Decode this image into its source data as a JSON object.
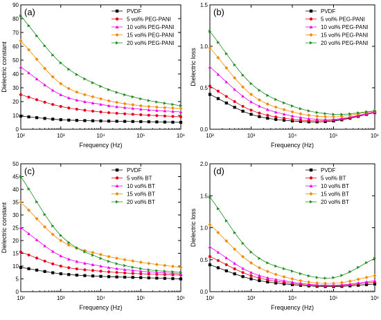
{
  "chart_data": [
    {
      "type": "line",
      "panel_label": "(a)",
      "xlabel": "Frequency (Hz)",
      "ylabel": "Dielectric constant",
      "xscale": "log",
      "xlim": [
        100,
        1000000
      ],
      "ylim": [
        0,
        90
      ],
      "yticks": [
        0,
        10,
        20,
        30,
        40,
        50,
        60,
        70,
        80,
        90
      ],
      "xtick_labels": [
        "10²",
        "10³",
        "10⁴",
        "10⁵",
        "10⁶"
      ],
      "ytick_labels": [
        "0",
        "10",
        "20",
        "30",
        "40",
        "50",
        "60",
        "70",
        "80",
        "90"
      ],
      "legend_position": "top-right",
      "x": [
        100,
        1000,
        10000,
        100000,
        1000000
      ],
      "series": [
        {
          "name": "PVDF",
          "color": "#000000",
          "marker": "square",
          "values": [
            9.5,
            6.9,
            6.0,
            5.5,
            5.0
          ]
        },
        {
          "name": "5 vol% PEG-PANI",
          "color": "#e8001c",
          "marker": "circle",
          "values": [
            25,
            16.5,
            12.5,
            10.5,
            9.0
          ]
        },
        {
          "name": "10 vol% PEG-PANI",
          "color": "#ee00ee",
          "marker": "triangle-up",
          "values": [
            45,
            25,
            18,
            14.5,
            12.5
          ]
        },
        {
          "name": "15 vol% PEG-PANI",
          "color": "#f08c00",
          "marker": "diamond",
          "values": [
            64,
            33,
            22,
            17,
            15
          ]
        },
        {
          "name": "20 vol% PEG-PANI",
          "color": "#1e8c1e",
          "marker": "triangle-right",
          "values": [
            82,
            48,
            31,
            22,
            17
          ]
        }
      ]
    },
    {
      "type": "line",
      "panel_label": "(b)",
      "xlabel": "Frequency (Hz)",
      "ylabel": "Dielectric loss",
      "xscale": "log",
      "xlim": [
        100,
        1000000
      ],
      "ylim": [
        0,
        1.5
      ],
      "yticks": [
        0,
        0.5,
        1.0,
        1.5
      ],
      "xtick_labels": [
        "10²",
        "10³",
        "10⁴",
        "10⁵",
        "10⁶"
      ],
      "ytick_labels": [
        "0.0",
        "0.5",
        "1.0",
        "1.5"
      ],
      "legend_position": "top-right",
      "x": [
        100,
        1000,
        10000,
        100000,
        1000000
      ],
      "series": [
        {
          "name": "PVDF",
          "color": "#000000",
          "marker": "square",
          "values": [
            0.42,
            0.18,
            0.1,
            0.1,
            0.2
          ]
        },
        {
          "name": "5 vol% PEG-PANI",
          "color": "#e8001c",
          "marker": "circle",
          "values": [
            0.52,
            0.23,
            0.12,
            0.11,
            0.2
          ]
        },
        {
          "name": "10 vol% PEG-PANI",
          "color": "#ee00ee",
          "marker": "triangle-up",
          "values": [
            0.75,
            0.33,
            0.16,
            0.12,
            0.21
          ]
        },
        {
          "name": "15 vol% PEG-PANI",
          "color": "#f08c00",
          "marker": "diamond",
          "values": [
            0.98,
            0.42,
            0.21,
            0.15,
            0.22
          ]
        },
        {
          "name": "20 vol% PEG-PANI",
          "color": "#1e8c1e",
          "marker": "triangle-right",
          "values": [
            1.18,
            0.55,
            0.28,
            0.18,
            0.22
          ]
        }
      ]
    },
    {
      "type": "line",
      "panel_label": "(c)",
      "xlabel": "Frequency (Hz)",
      "ylabel": "Dielectric constant",
      "xscale": "log",
      "xlim": [
        100,
        1000000
      ],
      "ylim": [
        0,
        50
      ],
      "yticks": [
        0,
        5,
        10,
        15,
        20,
        25,
        30,
        35,
        40,
        45,
        50
      ],
      "xtick_labels": [
        "10²",
        "10³",
        "10⁴",
        "10⁵",
        "10⁶"
      ],
      "ytick_labels": [
        "0",
        "5",
        "10",
        "15",
        "20",
        "25",
        "30",
        "35",
        "40",
        "45",
        "50"
      ],
      "legend_position": "top-right",
      "x": [
        100,
        1000,
        10000,
        100000,
        1000000
      ],
      "series": [
        {
          "name": "PVDF",
          "color": "#000000",
          "marker": "square",
          "values": [
            9.5,
            7.0,
            6.0,
            5.5,
            5.0
          ]
        },
        {
          "name": "5 vol% BT",
          "color": "#e8001c",
          "marker": "circle",
          "values": [
            15.5,
            10,
            8,
            7,
            6.5
          ]
        },
        {
          "name": "10 vol% BT",
          "color": "#ee00ee",
          "marker": "triangle-up",
          "values": [
            25,
            14,
            10,
            8,
            7
          ]
        },
        {
          "name": "15 vol% BT",
          "color": "#f08c00",
          "marker": "diamond",
          "values": [
            35,
            20,
            14.5,
            11.5,
            9.5
          ]
        },
        {
          "name": "20 vol% BT",
          "color": "#1e8c1e",
          "marker": "triangle-right",
          "values": [
            45,
            22,
            13,
            9,
            7.5
          ]
        }
      ]
    },
    {
      "type": "line",
      "panel_label": "(d)",
      "xlabel": "Frequency (Hz)",
      "ylabel": "Dielectric loss",
      "xscale": "log",
      "xlim": [
        100,
        1000000
      ],
      "ylim": [
        0,
        2.0
      ],
      "yticks": [
        0,
        0.5,
        1.0,
        1.5,
        2.0
      ],
      "xtick_labels": [
        "10²",
        "10³",
        "10⁴",
        "10⁵",
        "10⁶"
      ],
      "ytick_labels": [
        "0.0",
        "0.5",
        "1.0",
        "1.5",
        "2.0"
      ],
      "legend_position": "top-right",
      "x": [
        100,
        1000,
        10000,
        100000,
        1000000
      ],
      "series": [
        {
          "name": "PVDF",
          "color": "#000000",
          "marker": "square",
          "values": [
            0.42,
            0.2,
            0.11,
            0.08,
            0.12
          ]
        },
        {
          "name": "5 vol% BT",
          "color": "#e8001c",
          "marker": "circle",
          "values": [
            0.55,
            0.25,
            0.13,
            0.09,
            0.15
          ]
        },
        {
          "name": "10 vol% BT",
          "color": "#ee00ee",
          "marker": "triangle-up",
          "values": [
            0.7,
            0.3,
            0.15,
            0.1,
            0.17
          ]
        },
        {
          "name": "15 vol% BT",
          "color": "#f08c00",
          "marker": "diamond",
          "values": [
            1.05,
            0.45,
            0.2,
            0.13,
            0.25
          ]
        },
        {
          "name": "20 vol% BT",
          "color": "#1e8c1e",
          "marker": "triangle-right",
          "values": [
            1.48,
            0.62,
            0.32,
            0.22,
            0.52
          ]
        }
      ]
    }
  ]
}
